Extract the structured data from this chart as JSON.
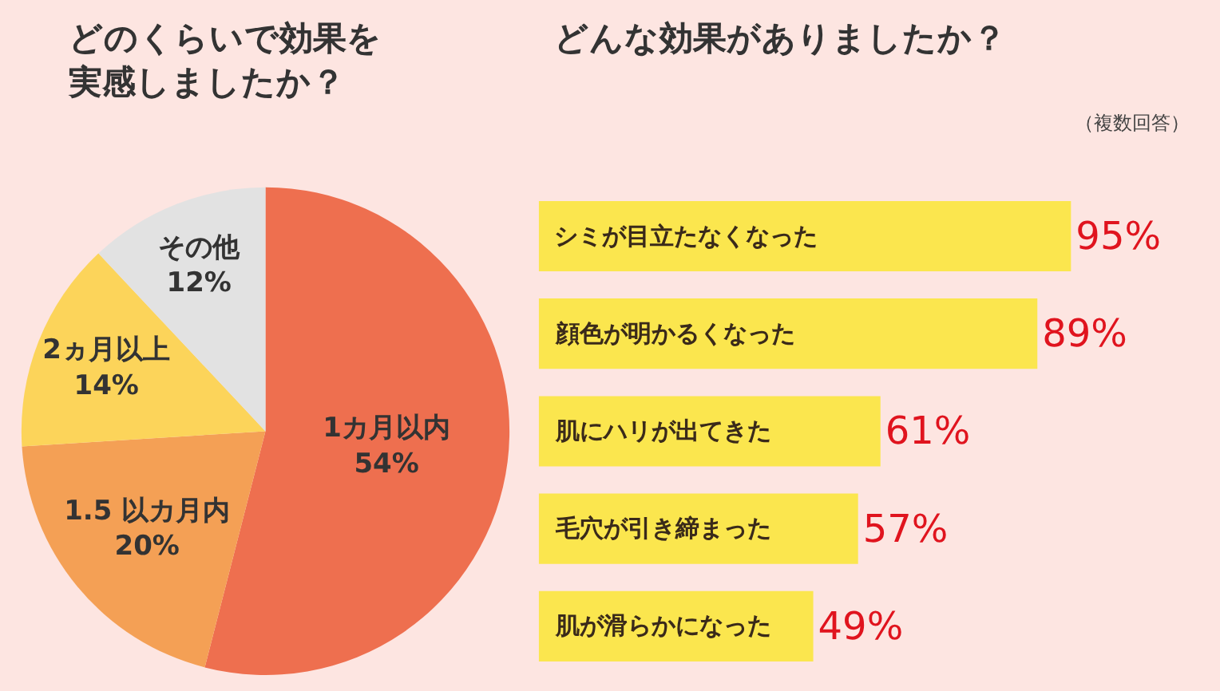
{
  "chart_data": [
    {
      "type": "pie",
      "title": "どのくらいで効果を実感しましたか？",
      "categories": [
        "1カ月以内",
        "1.5 以カ月内",
        "2ヵ月以上",
        "その他"
      ],
      "values": [
        54,
        20,
        14,
        12
      ],
      "colors": [
        "#ee6f4f",
        "#f4a055",
        "#fcd45a",
        "#e2e2e2"
      ],
      "value_labels": [
        "54%",
        "20%",
        "14%",
        "12%"
      ]
    },
    {
      "type": "bar",
      "orientation": "horizontal",
      "title": "どんな効果がありましたか？",
      "subtitle": "（複数回答）",
      "categories": [
        "シミが目立たなくなった",
        "顔色が明かるくなった",
        "肌にハリが出てきた",
        "毛穴が引き締まった",
        "肌が滑らかになった"
      ],
      "values": [
        95,
        89,
        61,
        57,
        49
      ],
      "color": "#fbe64e",
      "value_labels": [
        "95%",
        "89%",
        "61%",
        "57%",
        "49%"
      ]
    }
  ]
}
